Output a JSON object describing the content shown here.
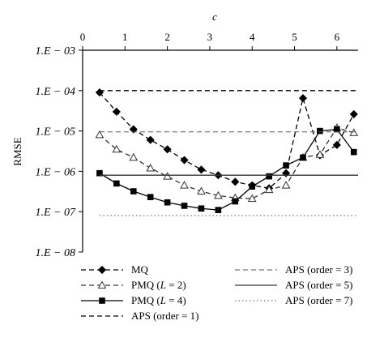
{
  "chart_data": {
    "type": "line",
    "xlabel": "c",
    "ylabel": "RMSE",
    "x_axis_position": "top",
    "xlim": [
      0,
      6.5
    ],
    "x_ticks": [
      0,
      1,
      2,
      3,
      4,
      5,
      6
    ],
    "y_scale": "log",
    "ylim": [
      1e-08,
      0.001
    ],
    "y_ticks": [
      {
        "value": 0.001,
        "label": "1.E − 03"
      },
      {
        "value": 0.0001,
        "label": "1.E − 04"
      },
      {
        "value": 1e-05,
        "label": "1.E − 05"
      },
      {
        "value": 1e-06,
        "label": "1.E − 06"
      },
      {
        "value": 1e-07,
        "label": "1.E − 07"
      },
      {
        "value": 1e-08,
        "label": "1.E − 08"
      }
    ],
    "grid": false,
    "legend_position": "bottom",
    "series": [
      {
        "name": "MQ",
        "line": "dashed",
        "marker": "diamond",
        "x": [
          0.4,
          0.8,
          1.2,
          1.6,
          2.0,
          2.4,
          2.8,
          3.2,
          3.6,
          4.0,
          4.4,
          4.8,
          5.2,
          5.6,
          6.0,
          6.4
        ],
        "y": [
          9e-05,
          3e-05,
          1.1e-05,
          6e-06,
          3.5e-06,
          1.9e-06,
          1.1e-06,
          8e-07,
          5.5e-07,
          4.5e-07,
          3.8e-07,
          9e-07,
          6.5e-05,
          2.5e-06,
          4.5e-06,
          2.6e-05
        ]
      },
      {
        "name": "PMQ (L = 2)",
        "line": "dashed",
        "marker": "triangle-open",
        "x": [
          0.4,
          0.8,
          1.2,
          1.6,
          2.0,
          2.4,
          2.8,
          3.2,
          3.6,
          4.0,
          4.4,
          4.8,
          5.2,
          5.6,
          6.0,
          6.4
        ],
        "y": [
          8e-06,
          3.5e-06,
          2.2e-06,
          1.2e-06,
          7.5e-07,
          4.5e-07,
          3.2e-07,
          2.5e-07,
          2.2e-07,
          2.1e-07,
          3.5e-07,
          4.5e-07,
          2.2e-06,
          2.6e-06,
          1.2e-05,
          9e-06
        ]
      },
      {
        "name": "PMQ (L = 4)",
        "line": "solid",
        "marker": "square-filled",
        "x": [
          0.4,
          0.8,
          1.2,
          1.6,
          2.0,
          2.4,
          2.8,
          3.2,
          3.6,
          4.0,
          4.4,
          4.8,
          5.2,
          5.6,
          6.0,
          6.4
        ],
        "y": [
          9e-07,
          5e-07,
          3.2e-07,
          2.3e-07,
          1.7e-07,
          1.4e-07,
          1.2e-07,
          1.1e-07,
          1.8e-07,
          4.2e-07,
          7.5e-07,
          1.4e-06,
          2.2e-06,
          1e-05,
          1.1e-05,
          3e-06
        ]
      },
      {
        "name": "APS (order = 1)",
        "line": "dashed",
        "marker": "none",
        "x": [
          0.4,
          6.5
        ],
        "y": [
          0.0001,
          0.0001
        ]
      },
      {
        "name": "APS (order = 3)",
        "line": "dashed-light",
        "marker": "none",
        "x": [
          0.4,
          6.5
        ],
        "y": [
          9.5e-06,
          9.5e-06
        ]
      },
      {
        "name": "APS (order = 5)",
        "line": "solid",
        "marker": "none",
        "x": [
          0.4,
          6.5
        ],
        "y": [
          8e-07,
          8e-07
        ]
      },
      {
        "name": "APS (order = 7)",
        "line": "dotted",
        "marker": "none",
        "x": [
          0.4,
          6.5
        ],
        "y": [
          8e-08,
          8e-08
        ]
      }
    ]
  },
  "legend_entries": [
    {
      "base": "MQ",
      "italic": "",
      "suffix": ""
    },
    {
      "base": "PMQ (",
      "italic": "L",
      "suffix": " = 2)"
    },
    {
      "base": "PMQ (",
      "italic": "L",
      "suffix": " = 4)"
    },
    {
      "base": "APS (order = 1)",
      "italic": "",
      "suffix": ""
    },
    {
      "base": "APS (order = 3)",
      "italic": "",
      "suffix": ""
    },
    {
      "base": "APS (order = 5)",
      "italic": "",
      "suffix": ""
    },
    {
      "base": "APS (order = 7)",
      "italic": "",
      "suffix": ""
    }
  ],
  "colors": {
    "axis": "#000000",
    "mq": "#000000",
    "pmq2": "#333333",
    "pmq4": "#000000",
    "aps1": "#000000",
    "aps3": "#555555",
    "aps5": "#333333",
    "aps7": "#777777"
  }
}
